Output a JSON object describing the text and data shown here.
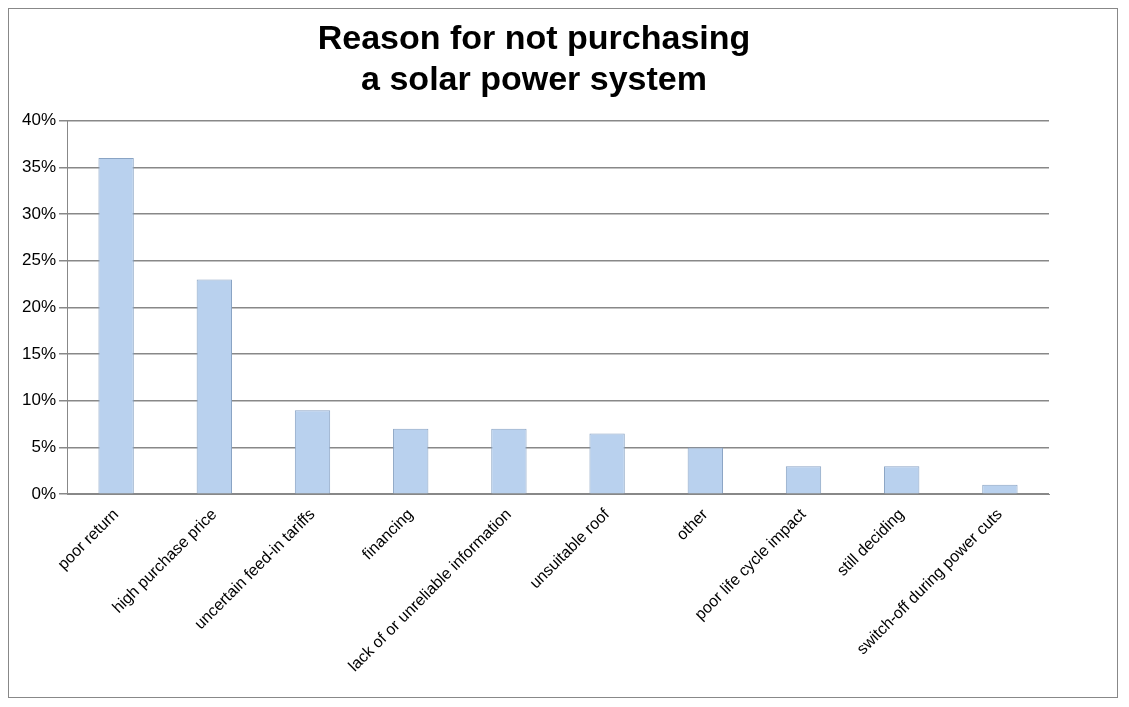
{
  "chart_data": {
    "type": "bar",
    "title": "Reason for not purchasing a solar power system",
    "categories": [
      "poor return",
      "high purchase price",
      "uncertain feed-in tariffs",
      "financing",
      "lack of or unreliable information",
      "unsuitable roof",
      "other",
      "poor life cycle impact",
      "still deciding",
      "switch-off during power cuts"
    ],
    "values": [
      36,
      23,
      9,
      7,
      7,
      6.5,
      5,
      3,
      3,
      1
    ],
    "color": "#b9d1ee",
    "ylim": [
      0,
      40
    ],
    "yticks": [
      {
        "value": 0,
        "label": "0%"
      },
      {
        "value": 5,
        "label": "5%"
      },
      {
        "value": 10,
        "label": "10%"
      },
      {
        "value": 15,
        "label": "15%"
      },
      {
        "value": 20,
        "label": "20%"
      },
      {
        "value": 25,
        "label": "25%"
      },
      {
        "value": 30,
        "label": "30%"
      },
      {
        "value": 35,
        "label": "35%"
      },
      {
        "value": 40,
        "label": "40%"
      }
    ],
    "grid": "y",
    "legend": false
  }
}
